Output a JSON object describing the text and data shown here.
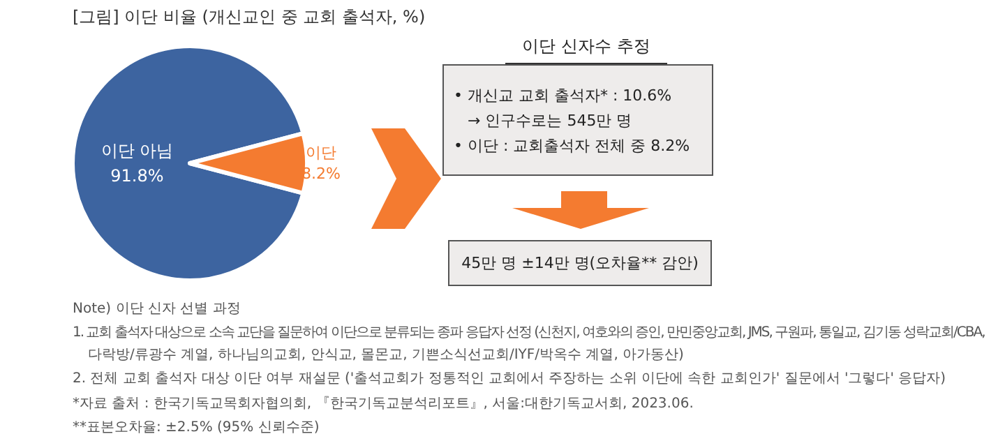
{
  "chart_data": {
    "type": "pie",
    "title": "[그림] 이단 비율 (개신교인 중 교회 출석자, %)",
    "categories": [
      "이단 아님",
      "이단"
    ],
    "values": [
      91.8,
      8.2
    ],
    "colors": [
      "#3d64a0",
      "#f47b30"
    ],
    "value_labels": [
      "91.8%",
      "8.2%"
    ],
    "annotations": [
      "이단 신자수 추정",
      "• 개신교 교회 출석자* : 10.6%",
      "→ 인구수로는 545만 명",
      "• 이단 : 교회출석자 전체 중 8.2%",
      "45만 명 ±14만 명(오차율** 감안)",
      "Note) 이단 신자 선별 과정",
      "1. 교회 출석자 대상으로 소속 교단을 질문하여 이단으로 분류되는 종파 응답자 선정 (신천지, 여호와의 증인, 만민중앙교회, JMS, 구원파, 통일교, 김기동 성락교회/CBA,",
      "다락방/류광수 계열, 하나님의교회, 안식교, 몰몬교, 기쁜소식선교회/IYF/박옥수 계열, 아가동산)",
      "2. 전체 교회 출석자 대상 이단 여부 재설문 ('출석교회가 정통적인 교회에서 주장하는 소위 이단에 속한 교회인가' 질문에서 '그렇다' 응답자)",
      "*자료 출처 : 한국기독교목회자협의회, 『한국기독교분석리포트』, 서울:대한기독교서회, 2023.06.",
      "**표본오차율: ±2.5% (95% 신뢰수준)"
    ],
    "legend": false
  }
}
